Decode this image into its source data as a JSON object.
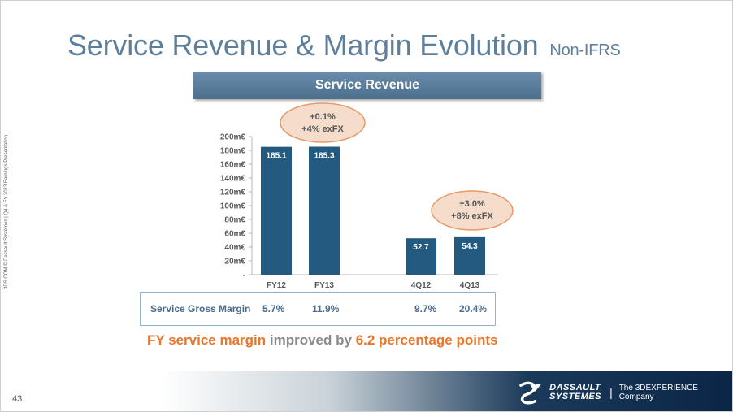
{
  "slide": {
    "title": "Service Revenue & Margin Evolution",
    "title_suffix": "Non-IFRS",
    "banner": "Service Revenue",
    "side_text": "3DS.COM © Dassault Systèmes | Q4 & FY 2013 Earnings Presentation",
    "page_number": "43"
  },
  "chart_data": {
    "type": "bar",
    "title": "Service Revenue",
    "categories": [
      "FY12",
      "FY13",
      "4Q12",
      "4Q13"
    ],
    "values": [
      185.1,
      185.3,
      52.7,
      54.3
    ],
    "value_labels": [
      "185.1",
      "185.3",
      "52.7",
      "54.3"
    ],
    "ylim": [
      0,
      200
    ],
    "y_ticks": [
      "-",
      "20m€",
      "40m€",
      "60m€",
      "80m€",
      "100m€",
      "120m€",
      "140m€",
      "160m€",
      "180m€",
      "200m€"
    ],
    "bar_color": "#255a80",
    "annotations": [
      {
        "line1": "+0.1%",
        "line2": "+4% exFX"
      },
      {
        "line1": "+3.0%",
        "line2": "+8% exFX"
      }
    ]
  },
  "margin_table": {
    "label": "Service Gross Margin",
    "values": [
      "5.7%",
      "11.9%",
      "9.7%",
      "20.4%"
    ]
  },
  "callout": {
    "part1": "FY service margin",
    "part2": " improved by ",
    "part3": "6.2 percentage points"
  },
  "footer": {
    "brand_line1": "DASSAULT",
    "brand_line2": "SYSTEMES",
    "separator": "|",
    "tagline": "The 3DEXPERIENCE Company"
  },
  "colors": {
    "title": "#5d7f9c",
    "accent_orange": "#e8762b",
    "bubble_fill": "#f6dcca",
    "bubble_stroke": "#e59a6a"
  }
}
